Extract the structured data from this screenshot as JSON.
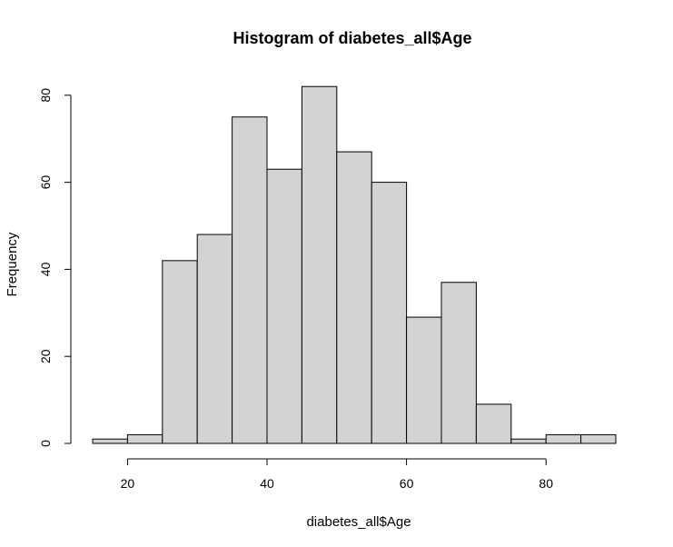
{
  "chart_data": {
    "type": "bar",
    "subtype": "histogram",
    "title": "Histogram of diabetes_all$Age",
    "xlabel": "diabetes_all$Age",
    "ylabel": "Frequency",
    "bin_width": 5,
    "bins": [
      {
        "start": 15,
        "end": 20,
        "count": 1
      },
      {
        "start": 20,
        "end": 25,
        "count": 2
      },
      {
        "start": 25,
        "end": 30,
        "count": 42
      },
      {
        "start": 30,
        "end": 35,
        "count": 48
      },
      {
        "start": 35,
        "end": 40,
        "count": 75
      },
      {
        "start": 40,
        "end": 45,
        "count": 63
      },
      {
        "start": 45,
        "end": 50,
        "count": 82
      },
      {
        "start": 50,
        "end": 55,
        "count": 67
      },
      {
        "start": 55,
        "end": 60,
        "count": 60
      },
      {
        "start": 60,
        "end": 65,
        "count": 29
      },
      {
        "start": 65,
        "end": 70,
        "count": 37
      },
      {
        "start": 70,
        "end": 75,
        "count": 9
      },
      {
        "start": 75,
        "end": 80,
        "count": 1
      },
      {
        "start": 80,
        "end": 85,
        "count": 2
      },
      {
        "start": 85,
        "end": 90,
        "count": 2
      }
    ],
    "xticks": [
      20,
      40,
      60,
      80
    ],
    "yticks": [
      0,
      20,
      40,
      60,
      80
    ],
    "xlim": [
      15,
      90
    ],
    "ylim": [
      0,
      82
    ],
    "grid": false,
    "bar_fill": "#d3d3d3",
    "bar_stroke": "#000000"
  }
}
